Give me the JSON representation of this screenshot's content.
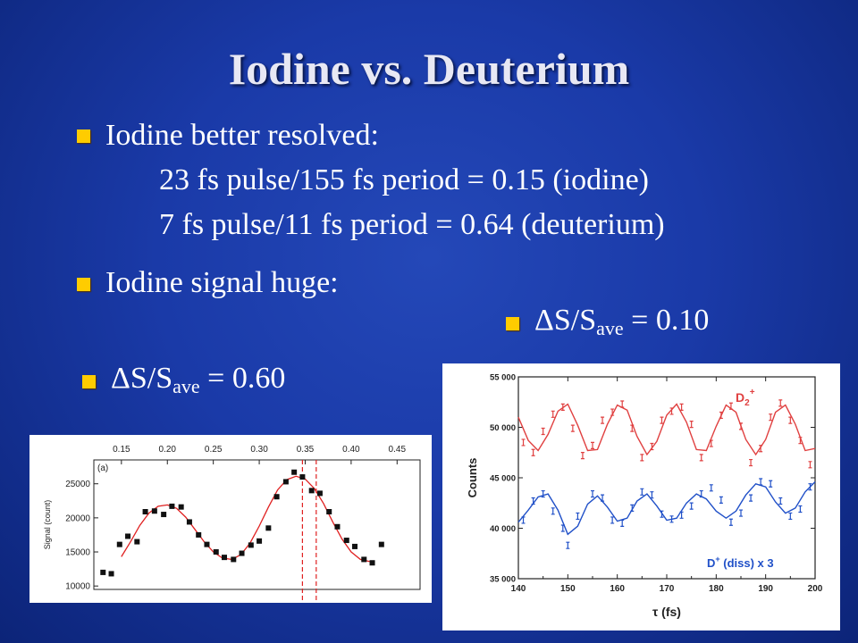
{
  "slide": {
    "title": "Iodine vs. Deuterium",
    "bullet1": "Iodine better resolved:",
    "line2": "23 fs pulse/155 fs period = 0.15 (iodine)",
    "line3": "7 fs pulse/11 fs period = 0.64 (deuterium)",
    "bullet2": "Iodine signal huge:",
    "ds_right": {
      "delta": "ΔS/S",
      "sub": "ave",
      "value": " = 0.10"
    },
    "ds_left": {
      "delta": "ΔS/S",
      "sub": "ave",
      "value": " = 0.60"
    },
    "colors": {
      "bullet": "#ffcc00",
      "background": "#1a3aa8"
    }
  },
  "chart_data": [
    {
      "type": "scatter",
      "panel_label": "(a)",
      "ylabel": "Signal (count)",
      "xlim": [
        0.12,
        0.475
      ],
      "ylim": [
        9500,
        28500
      ],
      "top_ticks": [
        "0.15",
        "0.20",
        "0.25",
        "0.30",
        "0.35",
        "0.40",
        "0.45"
      ],
      "top_tick_values": [
        0.15,
        0.2,
        0.25,
        0.3,
        0.35,
        0.4,
        0.45
      ],
      "y_ticks": [
        "10000",
        "15000",
        "20000",
        "25000"
      ],
      "y_tick_values": [
        10000,
        15000,
        20000,
        25000
      ],
      "points": [
        [
          0.13,
          12000
        ],
        [
          0.139,
          11800
        ],
        [
          0.148,
          16100
        ],
        [
          0.157,
          17300
        ],
        [
          0.167,
          16500
        ],
        [
          0.176,
          20900
        ],
        [
          0.186,
          21000
        ],
        [
          0.196,
          20500
        ],
        [
          0.205,
          21700
        ],
        [
          0.215,
          21600
        ],
        [
          0.224,
          19400
        ],
        [
          0.234,
          17500
        ],
        [
          0.243,
          16100
        ],
        [
          0.253,
          15000
        ],
        [
          0.262,
          14200
        ],
        [
          0.272,
          13900
        ],
        [
          0.281,
          14800
        ],
        [
          0.291,
          16000
        ],
        [
          0.3,
          16600
        ],
        [
          0.31,
          18500
        ],
        [
          0.319,
          23100
        ],
        [
          0.329,
          25300
        ],
        [
          0.338,
          26700
        ],
        [
          0.347,
          26000
        ],
        [
          0.357,
          24000
        ],
        [
          0.366,
          23600
        ],
        [
          0.376,
          20900
        ],
        [
          0.385,
          18700
        ],
        [
          0.395,
          16700
        ],
        [
          0.404,
          15800
        ],
        [
          0.414,
          13900
        ],
        [
          0.423,
          13400
        ],
        [
          0.433,
          16100
        ]
      ],
      "fit_curve": [
        [
          0.15,
          14300
        ],
        [
          0.16,
          16500
        ],
        [
          0.17,
          18900
        ],
        [
          0.18,
          20700
        ],
        [
          0.19,
          21700
        ],
        [
          0.2,
          21900
        ],
        [
          0.21,
          21400
        ],
        [
          0.22,
          20100
        ],
        [
          0.23,
          18300
        ],
        [
          0.24,
          16500
        ],
        [
          0.25,
          15000
        ],
        [
          0.26,
          14100
        ],
        [
          0.27,
          13900
        ],
        [
          0.28,
          14600
        ],
        [
          0.29,
          16300
        ],
        [
          0.3,
          18800
        ],
        [
          0.31,
          21600
        ],
        [
          0.32,
          24100
        ],
        [
          0.33,
          25600
        ],
        [
          0.34,
          26100
        ],
        [
          0.35,
          25700
        ],
        [
          0.36,
          24300
        ],
        [
          0.37,
          22100
        ],
        [
          0.38,
          19400
        ],
        [
          0.39,
          16900
        ],
        [
          0.4,
          15000
        ],
        [
          0.41,
          13900
        ],
        [
          0.42,
          13600
        ]
      ],
      "vlines": [
        0.347,
        0.362
      ],
      "colors": {
        "points": "#111111",
        "fit": "#e02020",
        "vlines": "#e02020"
      }
    },
    {
      "type": "scatter",
      "xlabel": "τ (fs)",
      "ylabel": "Counts",
      "xlim": [
        140,
        200
      ],
      "ylim": [
        35000,
        55000
      ],
      "x_ticks": [
        "140",
        "150",
        "160",
        "170",
        "180",
        "190",
        "200"
      ],
      "x_tick_values": [
        140,
        150,
        160,
        170,
        180,
        190,
        200
      ],
      "y_ticks": [
        "35 000",
        "40 000",
        "45 000",
        "50 000",
        "55 000"
      ],
      "y_tick_values": [
        35000,
        40000,
        45000,
        50000,
        55000
      ],
      "series": [
        {
          "name": "D2+",
          "label_main": "D",
          "label_sub": "2",
          "label_sup": "+",
          "color": "#e04040",
          "points": [
            [
              141,
              48500
            ],
            [
              143,
              47500
            ],
            [
              145,
              49600
            ],
            [
              147,
              51300
            ],
            [
              149,
              52000
            ],
            [
              151,
              49900
            ],
            [
              153,
              47200
            ],
            [
              155,
              48200
            ],
            [
              157,
              50700
            ],
            [
              159,
              51500
            ],
            [
              161,
              52300
            ],
            [
              163,
              49900
            ],
            [
              165,
              47000
            ],
            [
              167,
              48100
            ],
            [
              169,
              50700
            ],
            [
              171,
              51600
            ],
            [
              173,
              52000
            ],
            [
              175,
              50300
            ],
            [
              177,
              47000
            ],
            [
              179,
              48400
            ],
            [
              181,
              51200
            ],
            [
              183,
              52100
            ],
            [
              185,
              50100
            ],
            [
              187,
              46500
            ],
            [
              189,
              47900
            ],
            [
              191,
              51000
            ],
            [
              193,
              52400
            ],
            [
              195,
              50700
            ],
            [
              197,
              48700
            ],
            [
              199,
              46300
            ]
          ],
          "fit": [
            [
              140,
              51000
            ],
            [
              142,
              48700
            ],
            [
              144,
              47700
            ],
            [
              146,
              49300
            ],
            [
              148,
              51600
            ],
            [
              150,
              52300
            ],
            [
              152,
              50200
            ],
            [
              154,
              47700
            ],
            [
              156,
              47800
            ],
            [
              158,
              50300
            ],
            [
              160,
              52200
            ],
            [
              162,
              51700
            ],
            [
              164,
              49100
            ],
            [
              166,
              47300
            ],
            [
              168,
              48600
            ],
            [
              170,
              51200
            ],
            [
              172,
              52300
            ],
            [
              174,
              50500
            ],
            [
              176,
              47800
            ],
            [
              178,
              47700
            ],
            [
              180,
              50100
            ],
            [
              182,
              52200
            ],
            [
              184,
              51500
            ],
            [
              186,
              48800
            ],
            [
              188,
              47300
            ],
            [
              190,
              48800
            ],
            [
              192,
              51500
            ],
            [
              194,
              52200
            ],
            [
              196,
              50300
            ],
            [
              198,
              47700
            ],
            [
              200,
              47900
            ]
          ]
        },
        {
          "name": "D+ (diss) x 3",
          "label_main": "D",
          "label_sup": "+",
          "label_rest": " (diss) x 3",
          "color": "#2050c8",
          "points": [
            [
              141,
              40800
            ],
            [
              143,
              42700
            ],
            [
              145,
              43400
            ],
            [
              147,
              41700
            ],
            [
              149,
              40000
            ],
            [
              150,
              38300
            ],
            [
              152,
              41200
            ],
            [
              155,
              43400
            ],
            [
              157,
              43000
            ],
            [
              159,
              40800
            ],
            [
              161,
              40500
            ],
            [
              163,
              42000
            ],
            [
              165,
              43600
            ],
            [
              167,
              43300
            ],
            [
              169,
              41400
            ],
            [
              171,
              40900
            ],
            [
              173,
              41300
            ],
            [
              175,
              42200
            ],
            [
              177,
              43400
            ],
            [
              179,
              44000
            ],
            [
              181,
              42800
            ],
            [
              183,
              40600
            ],
            [
              185,
              41500
            ],
            [
              187,
              43000
            ],
            [
              189,
              44600
            ],
            [
              191,
              44400
            ],
            [
              193,
              42700
            ],
            [
              195,
              41200
            ],
            [
              197,
              41900
            ],
            [
              199,
              44100
            ]
          ],
          "fit": [
            [
              140,
              40600
            ],
            [
              142,
              41800
            ],
            [
              144,
              43100
            ],
            [
              146,
              43400
            ],
            [
              148,
              41800
            ],
            [
              150,
              39400
            ],
            [
              152,
              40200
            ],
            [
              154,
              42400
            ],
            [
              156,
              43200
            ],
            [
              158,
              42100
            ],
            [
              160,
              40700
            ],
            [
              162,
              41000
            ],
            [
              164,
              42700
            ],
            [
              166,
              43400
            ],
            [
              168,
              42200
            ],
            [
              170,
              40800
            ],
            [
              172,
              41000
            ],
            [
              174,
              42500
            ],
            [
              176,
              43400
            ],
            [
              178,
              42900
            ],
            [
              180,
              41700
            ],
            [
              182,
              41000
            ],
            [
              184,
              41700
            ],
            [
              186,
              43300
            ],
            [
              188,
              44400
            ],
            [
              190,
              44100
            ],
            [
              192,
              42600
            ],
            [
              194,
              41500
            ],
            [
              196,
              42000
            ],
            [
              198,
              43600
            ],
            [
              200,
              44600
            ]
          ]
        }
      ]
    }
  ]
}
